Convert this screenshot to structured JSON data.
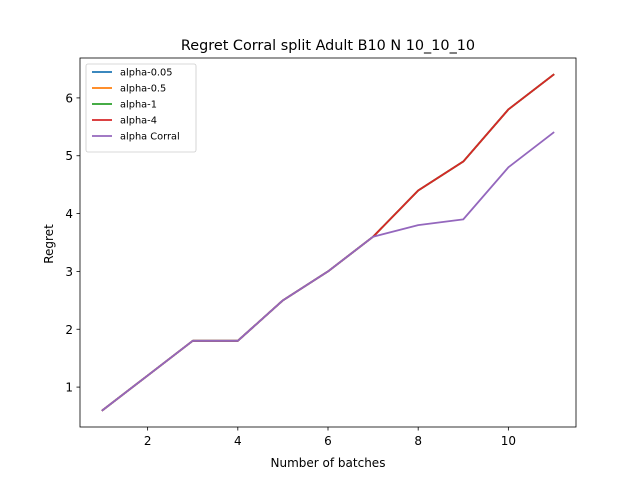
{
  "chart_data": {
    "type": "line",
    "title": "Regret Corral split Adult B10 N 10_10_10",
    "xlabel": "Number of batches",
    "ylabel": "Regret",
    "xlim": [
      0.5,
      11.5
    ],
    "ylim": [
      0.31,
      6.69
    ],
    "xticks": [
      2,
      4,
      6,
      8,
      10
    ],
    "yticks": [
      1,
      2,
      3,
      4,
      5,
      6
    ],
    "grid": false,
    "legend_position": "top-left",
    "x": [
      1,
      2,
      3,
      4,
      5,
      6,
      7,
      8,
      9,
      10,
      11
    ],
    "series": [
      {
        "name": "alpha-0.05",
        "color": "#1f77b4",
        "values": [
          0.6,
          1.2,
          1.8,
          1.8,
          2.5,
          3.0,
          3.6,
          4.4,
          4.9,
          5.8,
          6.4
        ]
      },
      {
        "name": "alpha-0.5",
        "color": "#ff7f0e",
        "values": [
          0.6,
          1.2,
          1.8,
          1.8,
          2.5,
          3.0,
          3.6,
          4.4,
          4.9,
          5.8,
          6.4
        ]
      },
      {
        "name": "alpha-1",
        "color": "#2ca02c",
        "values": [
          0.6,
          1.2,
          1.8,
          1.8,
          2.5,
          3.0,
          3.6,
          4.4,
          4.9,
          5.8,
          6.4
        ]
      },
      {
        "name": "alpha-4",
        "color": "#d62728",
        "values": [
          0.6,
          1.2,
          1.8,
          1.8,
          2.5,
          3.0,
          3.6,
          4.4,
          4.9,
          5.8,
          6.4
        ]
      },
      {
        "name": "alpha Corral",
        "color": "#9467bd",
        "values": [
          0.6,
          1.2,
          1.8,
          1.8,
          2.5,
          3.0,
          3.6,
          3.8,
          3.9,
          4.8,
          5.4
        ]
      }
    ]
  }
}
